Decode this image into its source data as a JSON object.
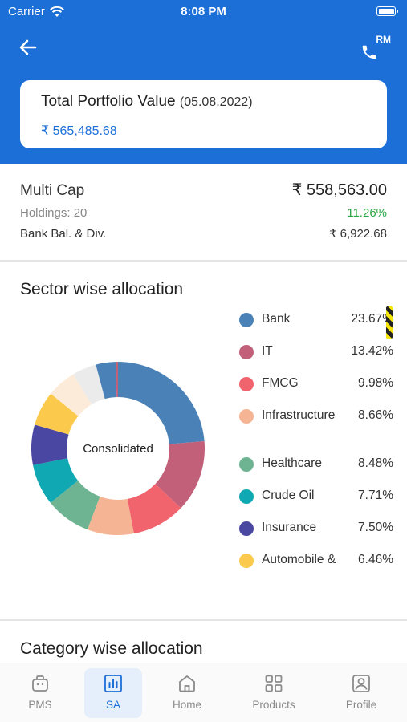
{
  "status_bar": {
    "carrier": "Carrier",
    "time": "8:08 PM"
  },
  "header": {
    "rm_label": "RM"
  },
  "portfolio": {
    "title": "Total Portfolio Value",
    "date": "(05.08.2022)",
    "value": "₹ 565,485.68"
  },
  "summary": {
    "scheme": "Multi Cap",
    "amount": "₹ 558,563.00",
    "holdings": "Holdings: 20",
    "return_pct": "11.26%",
    "bank_label": "Bank Bal. & Div.",
    "bank_value": "₹ 6,922.68"
  },
  "sector": {
    "title": "Sector wise allocation",
    "center_label": "Consolidated"
  },
  "category": {
    "title": "Category wise allocation"
  },
  "chart_data": {
    "type": "pie",
    "categories": [
      "Bank",
      "IT",
      "FMCG",
      "Infrastructure",
      "Healthcare",
      "Crude Oil",
      "Insurance",
      "Automobile & ..."
    ],
    "values": [
      23.67,
      13.42,
      9.98,
      8.66,
      8.48,
      7.71,
      7.5,
      6.46
    ],
    "labels": [
      "Bank",
      "IT",
      "FMCG",
      "Infrastructure",
      "Healthcare",
      "Crude Oil",
      "Insurance",
      "Automobile &"
    ],
    "pct_labels": [
      "23.67%",
      "13.42%",
      "9.98%",
      "8.66%",
      "8.48%",
      "7.71%",
      "7.50%",
      "6.46%"
    ],
    "colors": [
      "#4a82b8",
      "#c2607a",
      "#f2646d",
      "#f5b595",
      "#6fb492",
      "#10a8b3",
      "#4a47a3",
      "#fbc94c",
      "#fcebd8",
      "#ebebeb",
      "#4a82b8",
      "#c2607a"
    ],
    "extra_slices": [
      5.5,
      4.5,
      3.7,
      0.42
    ],
    "hole": "donut"
  },
  "nav": {
    "items": [
      {
        "label": "PMS",
        "icon": "briefcase-icon"
      },
      {
        "label": "SA",
        "icon": "bar-chart-icon"
      },
      {
        "label": "Home",
        "icon": "home-icon"
      },
      {
        "label": "Products",
        "icon": "grid-icon"
      },
      {
        "label": "Profile",
        "icon": "profile-icon"
      }
    ],
    "active": "SA"
  }
}
